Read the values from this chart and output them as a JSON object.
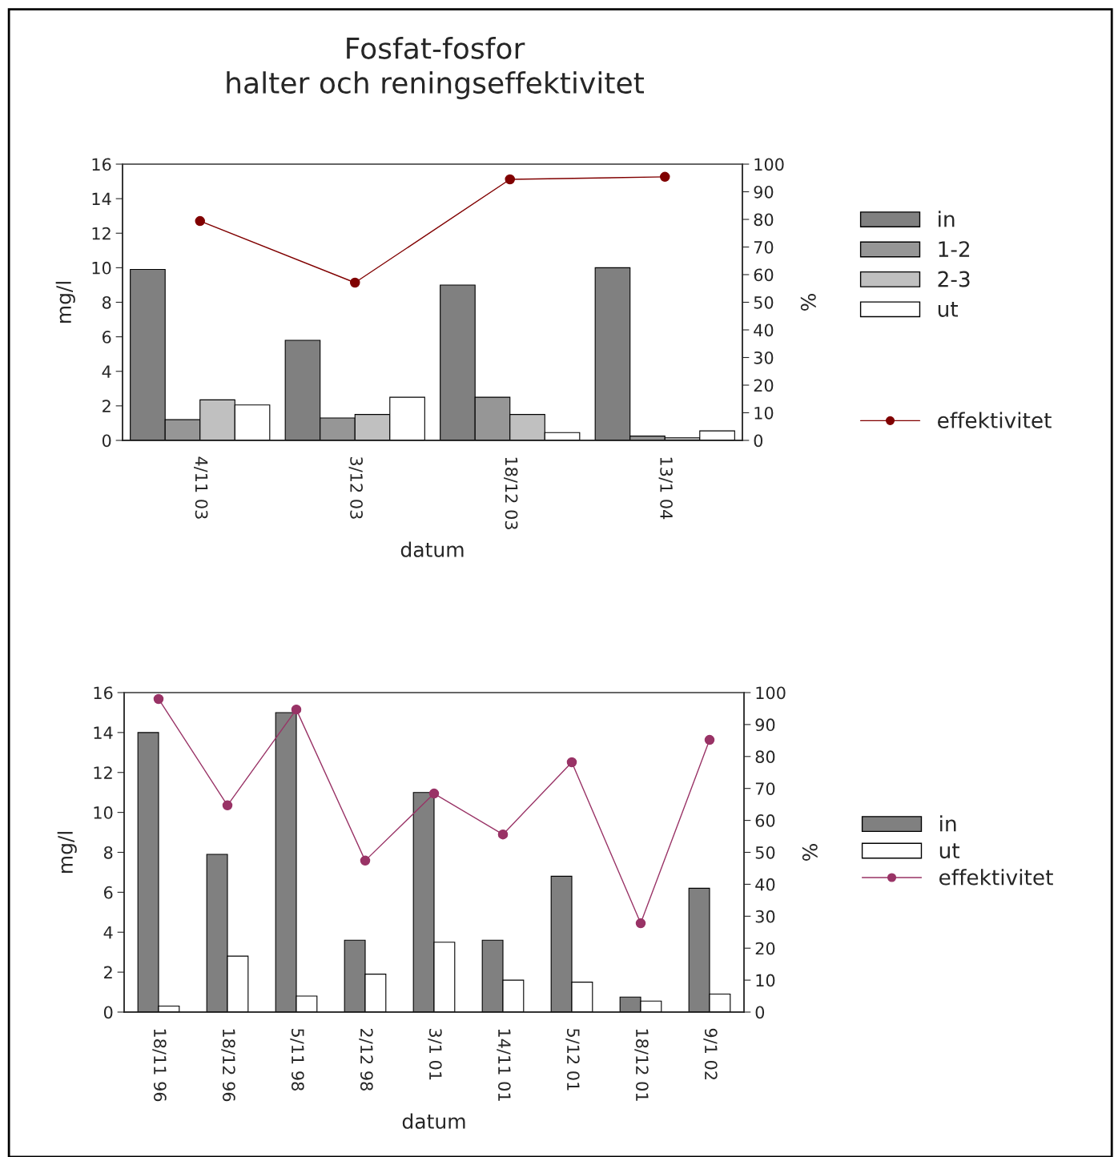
{
  "chart_data": [
    {
      "type": "bar",
      "title": "Fosfat-fosfor\nhalter och reningseffektivitet",
      "xlabel": "datum",
      "ylabel": "mg/l",
      "y2label": "%",
      "categories": [
        "4/11 03",
        "3/12 03",
        "18/12 03",
        "13/1 04"
      ],
      "series": [
        {
          "name": "in",
          "color": "#808080",
          "values": [
            9.9,
            5.8,
            9.0,
            10.0
          ]
        },
        {
          "name": "1-2",
          "color": "#969696",
          "values": [
            1.2,
            1.3,
            2.5,
            0.25
          ]
        },
        {
          "name": "2-3",
          "color": "#c0c0c0",
          "values": [
            2.35,
            1.5,
            1.5,
            0.15
          ]
        },
        {
          "name": "ut",
          "color": "#ffffff",
          "values": [
            2.05,
            2.5,
            0.45,
            0.55
          ]
        },
        {
          "name": "effektivitet",
          "type": "line",
          "axis": "y2",
          "color": "#800000",
          "marker": "circle",
          "values": [
            79.4,
            57.1,
            94.5,
            95.4
          ]
        }
      ],
      "ylim": [
        0,
        16
      ],
      "yticks": [
        0,
        2,
        4,
        6,
        8,
        10,
        12,
        14,
        16
      ],
      "y2lim": [
        0,
        100
      ],
      "y2ticks": [
        0,
        10,
        20,
        30,
        40,
        50,
        60,
        70,
        80,
        90,
        100
      ],
      "grid": false,
      "legend": "right"
    },
    {
      "type": "bar",
      "xlabel": "datum",
      "ylabel": "mg/l",
      "y2label": "%",
      "categories": [
        "18/11 96",
        "18/12 96",
        "5/11 98",
        "2/12 98",
        "3/1 01",
        "14/11 01",
        "5/12 01",
        "18/12 01",
        "9/1 02"
      ],
      "series": [
        {
          "name": "in",
          "color": "#808080",
          "values": [
            14.0,
            7.9,
            15.0,
            3.6,
            11.0,
            3.6,
            6.8,
            0.75,
            6.2
          ]
        },
        {
          "name": "ut",
          "color": "#ffffff",
          "values": [
            0.3,
            2.8,
            0.8,
            1.9,
            3.5,
            1.6,
            1.5,
            0.55,
            0.9
          ]
        },
        {
          "name": "effektivitet",
          "type": "line",
          "axis": "y2",
          "color": "#993366",
          "marker": "circle",
          "values": [
            98.0,
            64.7,
            94.7,
            47.4,
            68.4,
            55.6,
            78.2,
            27.8,
            85.2
          ]
        }
      ],
      "ylim": [
        0,
        16
      ],
      "yticks": [
        0,
        2,
        4,
        6,
        8,
        10,
        12,
        14,
        16
      ],
      "y2lim": [
        0,
        100
      ],
      "y2ticks": [
        0,
        10,
        20,
        30,
        40,
        50,
        60,
        70,
        80,
        90,
        100
      ],
      "grid": false,
      "legend": "right"
    }
  ]
}
